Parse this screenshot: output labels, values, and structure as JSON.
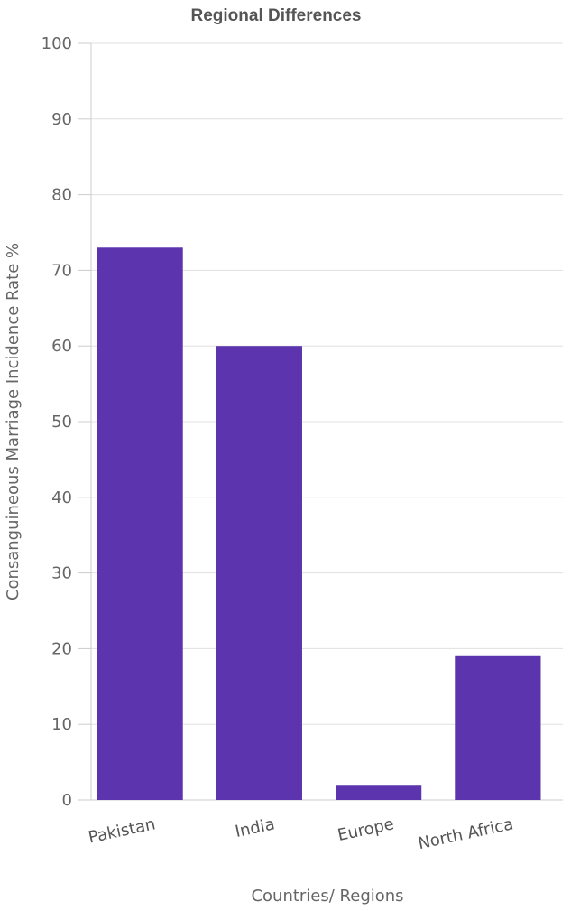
{
  "chart_data": {
    "type": "bar",
    "title": "Regional Differences",
    "xlabel": "Countries/ Regions",
    "ylabel": "Consanguineous Marriage Incidence Rate %",
    "categories": [
      "Pakistan",
      "India",
      "Europe",
      "North Africa"
    ],
    "values": [
      73,
      60,
      2,
      19
    ],
    "ylim": [
      0,
      100
    ],
    "yticks": [
      0,
      10,
      20,
      30,
      40,
      50,
      60,
      70,
      80,
      90,
      100
    ],
    "grid": true,
    "legend": "none",
    "bar_color": "#5c35ae"
  }
}
